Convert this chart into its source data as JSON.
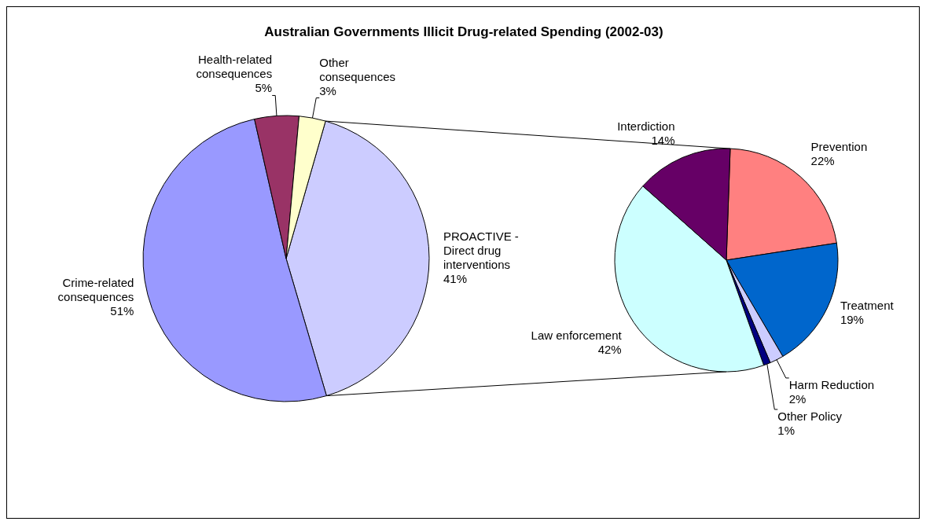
{
  "chart_data": [
    {
      "type": "pie",
      "title": "Australian Governments Illicit Drug-related Spending (2002-03)",
      "categories": [
        "PROACTIVE - Direct drug interventions",
        "Crime-related consequences",
        "Health-related consequences",
        "Other consequences"
      ],
      "values": [
        41,
        51,
        5,
        3
      ],
      "value_labels": [
        "41%",
        "51%",
        "5%",
        "3%"
      ],
      "colors": [
        "#ccccff",
        "#9999ff",
        "#993366",
        "#ffffcc"
      ]
    },
    {
      "type": "pie",
      "categories": [
        "Prevention",
        "Treatment",
        "Harm Reduction",
        "Other Policy",
        "Law enforcement",
        "Interdiction"
      ],
      "values": [
        22,
        19,
        2,
        1,
        42,
        14
      ],
      "value_labels": [
        "22%",
        "19%",
        "2%",
        "1%",
        "42%",
        "14%"
      ],
      "colors": [
        "#ff8080",
        "#0066cc",
        "#ccccff",
        "#000080",
        "#ccffff",
        "#660066"
      ]
    }
  ]
}
